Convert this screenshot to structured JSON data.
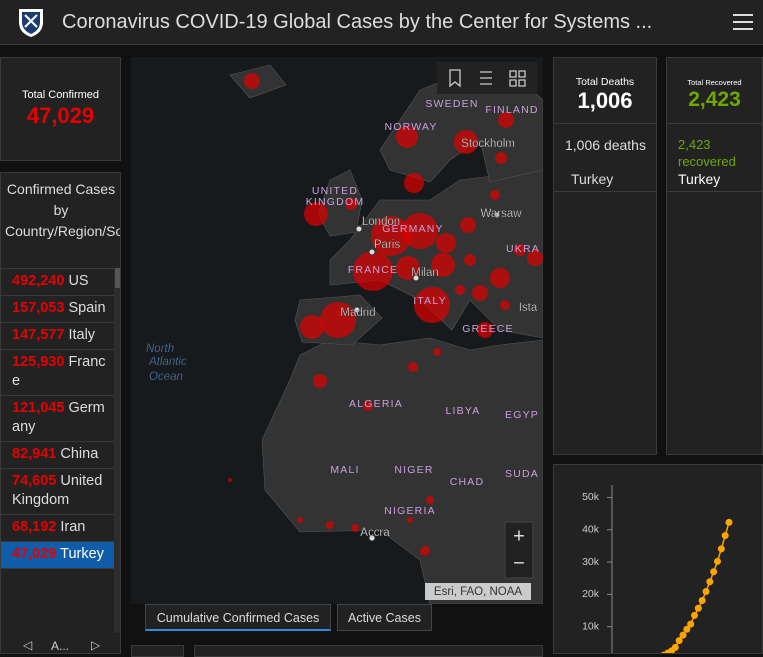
{
  "header": {
    "title": "Coronavirus COVID-19 Global Cases by the Center for Systems ..."
  },
  "total_confirmed": {
    "label": "Total Confirmed",
    "value": "47,029"
  },
  "confirmed_list": {
    "title": "Confirmed Cases by Country/Region/Sovereignty",
    "rows": [
      {
        "count": "492,240",
        "name": "US"
      },
      {
        "count": "157,053",
        "name": "Spain"
      },
      {
        "count": "147,577",
        "name": "Italy"
      },
      {
        "count": "125,930",
        "name": "France"
      },
      {
        "count": "121,045",
        "name": "Germany"
      },
      {
        "count": "82,941",
        "name": "China"
      },
      {
        "count": "74,605",
        "name": "United Kingdom"
      },
      {
        "count": "68,192",
        "name": "Iran"
      },
      {
        "count": "47,029",
        "name": "Turkey"
      }
    ],
    "nav": "A..."
  },
  "map": {
    "labels": [
      "SWEDEN",
      "FINLAND",
      "NORWAY",
      "Stockholm",
      "UNITED",
      "KINGDOM",
      "London",
      "GERMANY",
      "Warsaw",
      "Paris",
      "UKRA",
      "FRANCE",
      "Milan",
      "ITALY",
      "Madrid",
      "Ista",
      "GREECE",
      "North",
      "Atlantic",
      "Ocean",
      "ALGERIA",
      "LIBYA",
      "EGYP",
      "MALI",
      "NIGER",
      "CHAD",
      "SUDA",
      "NIGERIA",
      "Accra"
    ],
    "attribution": "Esri, FAO, NOAA",
    "zoom_in": "+",
    "zoom_out": "−"
  },
  "tabs": [
    "Cumulative Confirmed Cases",
    "Active Cases"
  ],
  "deaths": {
    "label": "Total Deaths",
    "value": "1,006",
    "detail_count": "1,006",
    "detail_unit": "deaths",
    "place": "Turkey"
  },
  "recovered": {
    "label": "Total Recovered",
    "value": "2,423",
    "detail_count": "2,423",
    "detail_unit": "recovered",
    "place": "Turkey"
  },
  "chart_data": {
    "type": "line",
    "color": "#ffa500",
    "values": [
      0,
      0,
      0,
      0,
      0,
      0,
      0,
      0,
      0,
      100,
      200,
      400,
      700,
      1200,
      1800,
      2500,
      3600,
      5700,
      7400,
      9200,
      10800,
      13500,
      15700,
      18100,
      20900,
      23900,
      27000,
      30200,
      34100,
      38200,
      42300
    ],
    "ylim": [
      0,
      52000
    ],
    "yticks": [
      {
        "value": 10000,
        "label": "10k"
      },
      {
        "value": 20000,
        "label": "20k"
      },
      {
        "value": 30000,
        "label": "30k"
      },
      {
        "value": 40000,
        "label": "40k"
      },
      {
        "value": 50000,
        "label": "50k"
      }
    ],
    "grid": false
  }
}
